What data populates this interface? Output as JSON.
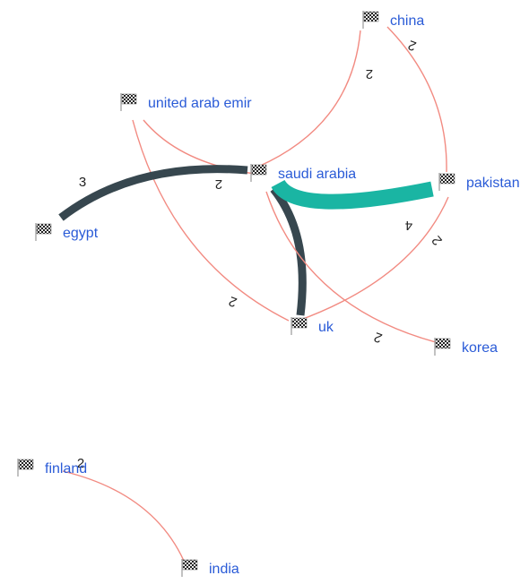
{
  "nodes": [
    {
      "label": "china"
    },
    {
      "label": "united arab emir"
    },
    {
      "label": "saudi arabia"
    },
    {
      "label": "pakistan"
    },
    {
      "label": "egypt"
    },
    {
      "label": "uk"
    },
    {
      "label": "korea"
    },
    {
      "label": "finland"
    },
    {
      "label": "india"
    }
  ],
  "edges": [
    {
      "source": "china",
      "target": "saudi arabia",
      "weight": 2,
      "color": "#f28b82"
    },
    {
      "source": "china",
      "target": "pakistan",
      "weight": 2,
      "color": "#f28b82"
    },
    {
      "source": "united arab emir",
      "target": "saudi arabia",
      "weight": 2,
      "color": "#f28b82"
    },
    {
      "source": "united arab emir",
      "target": "uk",
      "weight": 2,
      "color": "#f28b82"
    },
    {
      "source": "egypt",
      "target": "saudi arabia",
      "weight": 3,
      "color": "#37474f"
    },
    {
      "source": "saudi arabia",
      "target": "uk",
      "weight": 3,
      "color": "#37474f"
    },
    {
      "source": "saudi arabia",
      "target": "pakistan",
      "weight": 4,
      "color": "#1ab5a3"
    },
    {
      "source": "saudi arabia",
      "target": "korea",
      "weight": 2,
      "color": "#f28b82"
    },
    {
      "source": "pakistan",
      "target": "uk",
      "weight": 2,
      "color": "#f28b82"
    },
    {
      "source": "finland",
      "target": "india",
      "weight": 2,
      "color": "#f28b82"
    }
  ]
}
